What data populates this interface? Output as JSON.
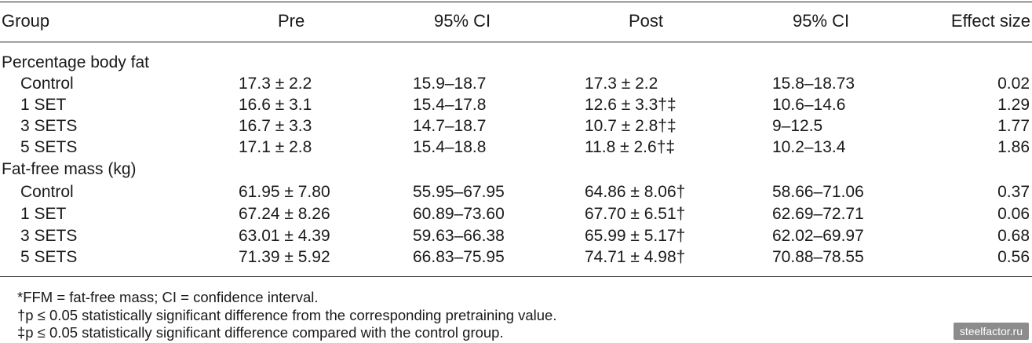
{
  "header": {
    "group": "Group",
    "pre": "Pre",
    "ci1": "95% CI",
    "post": "Post",
    "ci2": "95% CI",
    "effect": "Effect size"
  },
  "sections": [
    {
      "title": "Percentage body fat",
      "rows": [
        {
          "group": "Control",
          "pre": "17.3 ± 2.2",
          "ci1": "15.9–18.7",
          "post": "17.3 ± 2.2",
          "ci2": "15.8–18.73",
          "effect": "0.02"
        },
        {
          "group": "1 SET",
          "pre": "16.6 ± 3.1",
          "ci1": "15.4–17.8",
          "post": "12.6 ± 3.3†‡",
          "ci2": "10.6–14.6",
          "effect": "1.29"
        },
        {
          "group": "3 SETS",
          "pre": "16.7 ± 3.3",
          "ci1": "14.7–18.7",
          "post": "10.7 ± 2.8†‡",
          "ci2": "9–12.5",
          "effect": "1.77"
        },
        {
          "group": "5 SETS",
          "pre": "17.1 ± 2.8",
          "ci1": "15.4–18.8",
          "post": "11.8 ± 2.6†‡",
          "ci2": "10.2–13.4",
          "effect": "1.86"
        }
      ]
    },
    {
      "title": "Fat-free mass (kg)",
      "rows": [
        {
          "group": "Control",
          "pre": "61.95 ± 7.80",
          "ci1": "55.95–67.95",
          "post": "64.86 ± 8.06†",
          "ci2": "58.66–71.06",
          "effect": "0.37"
        },
        {
          "group": "1 SET",
          "pre": "67.24 ± 8.26",
          "ci1": "60.89–73.60",
          "post": "67.70 ± 6.51†",
          "ci2": "62.69–72.71",
          "effect": "0.06"
        },
        {
          "group": "3 SETS",
          "pre": "63.01 ± 4.39",
          "ci1": "59.63–66.38",
          "post": "65.99 ± 5.17†",
          "ci2": "62.02–69.97",
          "effect": "0.68"
        },
        {
          "group": "5 SETS",
          "pre": "71.39 ± 5.92",
          "ci1": "66.83–75.95",
          "post": "74.71 ± 4.98†",
          "ci2": "70.88–78.55",
          "effect": "0.56"
        }
      ]
    }
  ],
  "footnotes": [
    "*FFM = fat-free mass; CI = confidence interval.",
    "†p ≤ 0.05 statistically significant difference from the corresponding pretraining value.",
    "‡p ≤ 0.05 statistically significant difference compared with the control group."
  ],
  "watermark": "steelfactor.ru"
}
